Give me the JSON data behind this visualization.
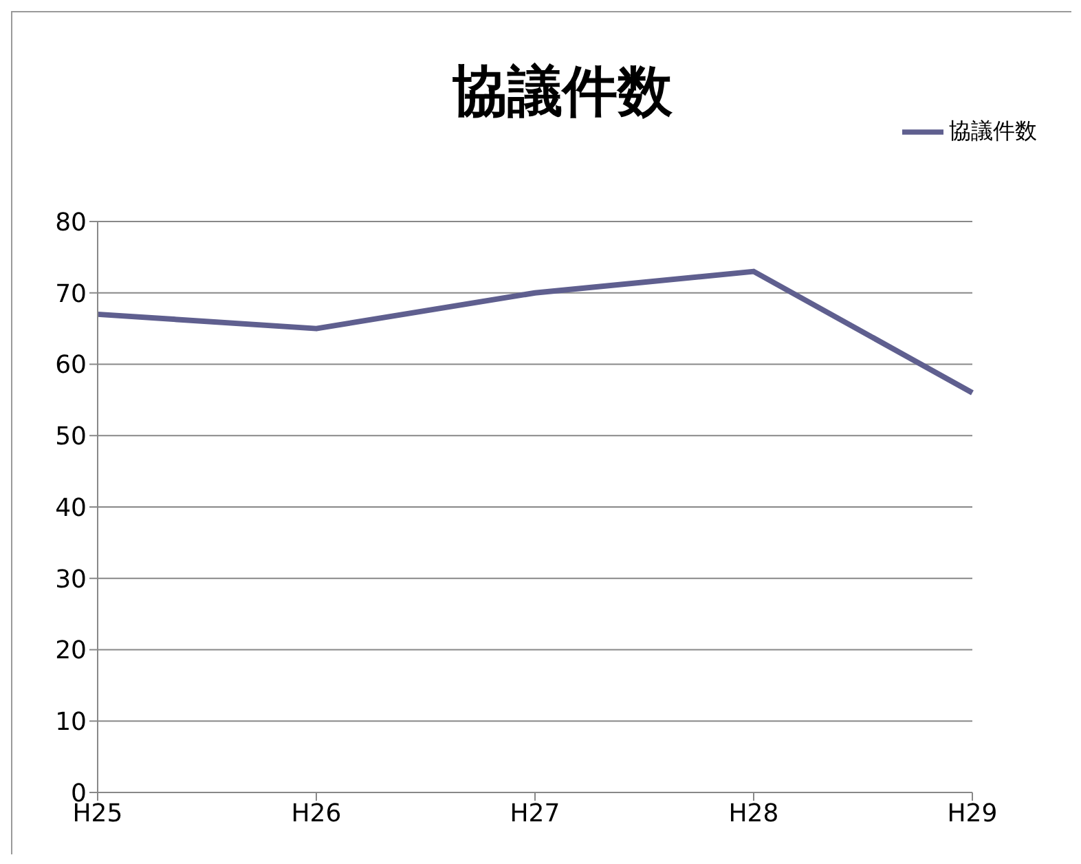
{
  "chart_data": {
    "type": "line",
    "title": "協議件数",
    "categories": [
      "H25",
      "H26",
      "H27",
      "H28",
      "H29"
    ],
    "series": [
      {
        "name": "協議件数",
        "color": "#5f5f8f",
        "values": [
          67,
          65,
          70,
          73,
          56
        ]
      }
    ],
    "ylim": [
      0,
      80
    ],
    "yticks": [
      0,
      10,
      20,
      30,
      40,
      50,
      60,
      70,
      80
    ],
    "grid": "y",
    "legend": "top right",
    "marker": "none",
    "line_style": "solid"
  }
}
